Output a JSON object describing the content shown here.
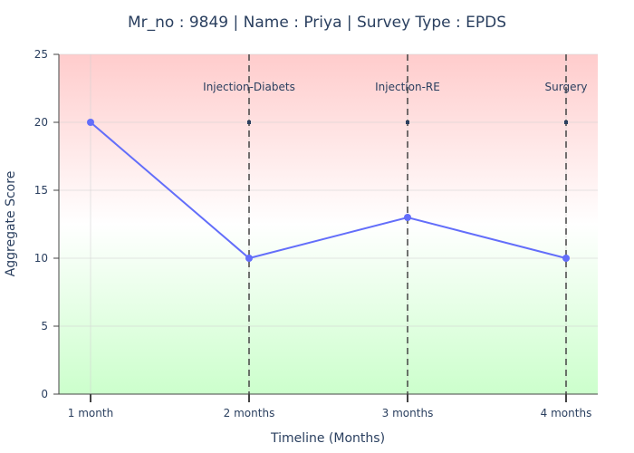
{
  "chart_data": {
    "type": "line",
    "title": "Mr_no : 9849 | Name : Priya | Survey Type : EPDS",
    "xlabel": "Timeline (Months)",
    "ylabel": "Aggregate Score",
    "categories": [
      "1 month",
      "2 months",
      "3 months",
      "4 months"
    ],
    "series": [
      {
        "values": [
          20,
          10,
          13,
          10
        ],
        "color": "#636efa"
      }
    ],
    "ylim": [
      0,
      25
    ],
    "yticks": [
      0,
      5,
      10,
      15,
      20,
      25
    ],
    "events": [
      {
        "x": "2 months",
        "label": "Injection-Diabets",
        "marker_y": 20
      },
      {
        "x": "3 months",
        "label": "Injection-RE",
        "marker_y": 20
      },
      {
        "x": "4 months",
        "label": "Surgery",
        "marker_y": 20
      }
    ],
    "background_gradient": {
      "top": "#ffcccc",
      "middle": "#ffffff",
      "bottom": "#ccffcc"
    },
    "grid": true
  }
}
